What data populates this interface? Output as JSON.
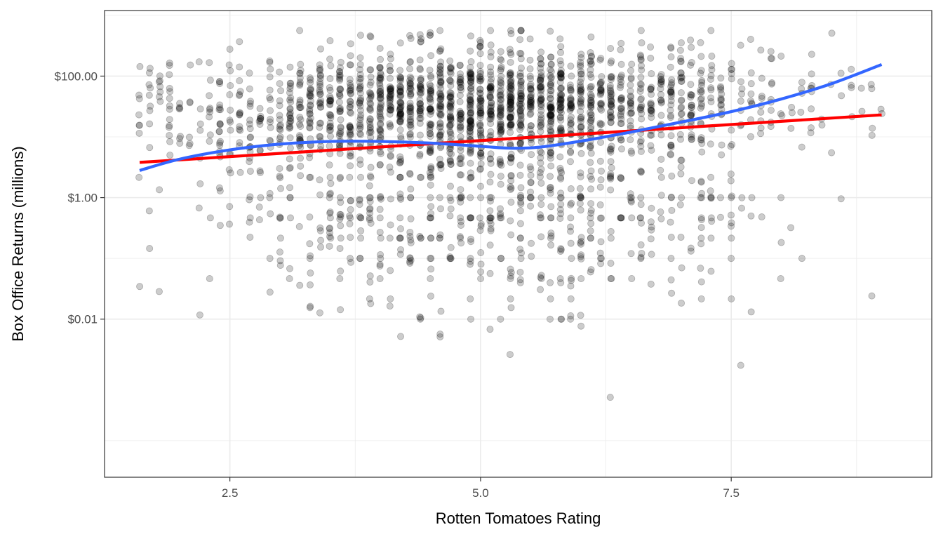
{
  "chart_data": {
    "type": "scatter",
    "title": "",
    "xlabel": "Rotten Tomatoes Rating",
    "ylabel": "Box Office Returns (millions)",
    "x_scale": "linear",
    "y_scale": "log10",
    "xlim": [
      1.25,
      9.5
    ],
    "ylim": [
      2.5e-05,
      1200
    ],
    "x_ticks": [
      {
        "value": 2.5,
        "label": "2.5"
      },
      {
        "value": 5.0,
        "label": "5.0"
      },
      {
        "value": 7.5,
        "label": "7.5"
      }
    ],
    "y_ticks": [
      {
        "value": 0.01,
        "label": "$0.01"
      },
      {
        "value": 1,
        "label": "$1.00"
      },
      {
        "value": 100,
        "label": "$100.00"
      }
    ],
    "x_minor_gridlines": [
      1.25,
      3.75,
      6.25,
      8.75
    ],
    "y_minor_gridlines": [
      0.0001,
      0.1,
      10,
      1000
    ],
    "grid": true,
    "theme": "black-and-white panel with light gray gridlines",
    "colors": {
      "points": "#000000",
      "linear_fit": "#ff0000",
      "smooth_fit": "#3366ff",
      "grid": "#ebebeb",
      "panel_border": "#333333"
    },
    "series": [
      {
        "kind": "points",
        "point_alpha": 0.2,
        "approx_count": 2500,
        "description_of_distribution": "dense cloud centered near rating 5 and returns $10–$100M, spreading down to ~$0.0004M"
      },
      {
        "kind": "linear-fit",
        "color": "#ff0000",
        "x": [
          1.6,
          9.0
        ],
        "y": [
          3.8,
          23
        ]
      },
      {
        "kind": "smooth-fit",
        "color": "#3366ff",
        "x": [
          1.6,
          2.0,
          2.5,
          3.0,
          3.5,
          4.0,
          4.5,
          5.0,
          5.3,
          5.6,
          6.0,
          6.5,
          7.0,
          7.5,
          8.0,
          8.5,
          9.0
        ],
        "y": [
          2.8,
          4.3,
          6.1,
          7.6,
          8.4,
          8.4,
          7.9,
          7.0,
          6.5,
          6.8,
          8.5,
          12,
          17.5,
          26,
          42,
          75,
          155
        ]
      }
    ]
  }
}
